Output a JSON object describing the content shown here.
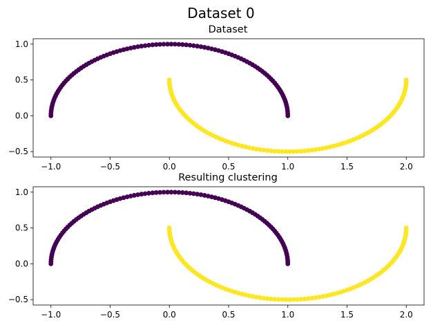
{
  "suptitle": "Dataset 0",
  "colors": {
    "cluster_0": "#440154",
    "cluster_1": "#fde725"
  },
  "chart_data": [
    {
      "type": "scatter",
      "title": "Dataset",
      "xlim": [
        -1.15,
        2.15
      ],
      "ylim": [
        -0.575,
        1.075
      ],
      "xticks": [
        -1.0,
        -0.5,
        0.0,
        0.5,
        1.0,
        1.5,
        2.0
      ],
      "xtick_labels": [
        "−1.0",
        "−0.5",
        "0.0",
        "0.5",
        "1.0",
        "1.5",
        "2.0"
      ],
      "yticks": [
        -0.5,
        0.0,
        0.5,
        1.0
      ],
      "ytick_labels": [
        "−0.5",
        "0.0",
        "0.5",
        "1.0"
      ],
      "grid": false,
      "series": [
        {
          "shape": "upper semicircle: x = cos(t), y = sin(t), t from 0 to π",
          "points": 100,
          "color": "#440154"
        },
        {
          "shape": "lower semicircle: x = 1 − cos(t), y = 0.5 − sin(t), t from 0 to π",
          "points": 100,
          "color": "#fde725"
        }
      ]
    },
    {
      "type": "scatter",
      "title": "Resulting clustering",
      "xlim": [
        -1.15,
        2.15
      ],
      "ylim": [
        -0.575,
        1.075
      ],
      "xticks": [
        -1.0,
        -0.5,
        0.0,
        0.5,
        1.0,
        1.5,
        2.0
      ],
      "xtick_labels": [
        "−1.0",
        "−0.5",
        "0.0",
        "0.5",
        "1.0",
        "1.5",
        "2.0"
      ],
      "yticks": [
        -0.5,
        0.0,
        0.5,
        1.0
      ],
      "ytick_labels": [
        "−0.5",
        "0.0",
        "0.5",
        "1.0"
      ],
      "grid": false,
      "series": [
        {
          "shape": "upper semicircle: x = cos(t), y = sin(t), t from 0 to π",
          "points": 100,
          "color": "#440154"
        },
        {
          "shape": "lower semicircle: x = 1 − cos(t), y = 0.5 − sin(t), t from 0 to π",
          "points": 100,
          "color": "#fde725"
        }
      ]
    }
  ]
}
